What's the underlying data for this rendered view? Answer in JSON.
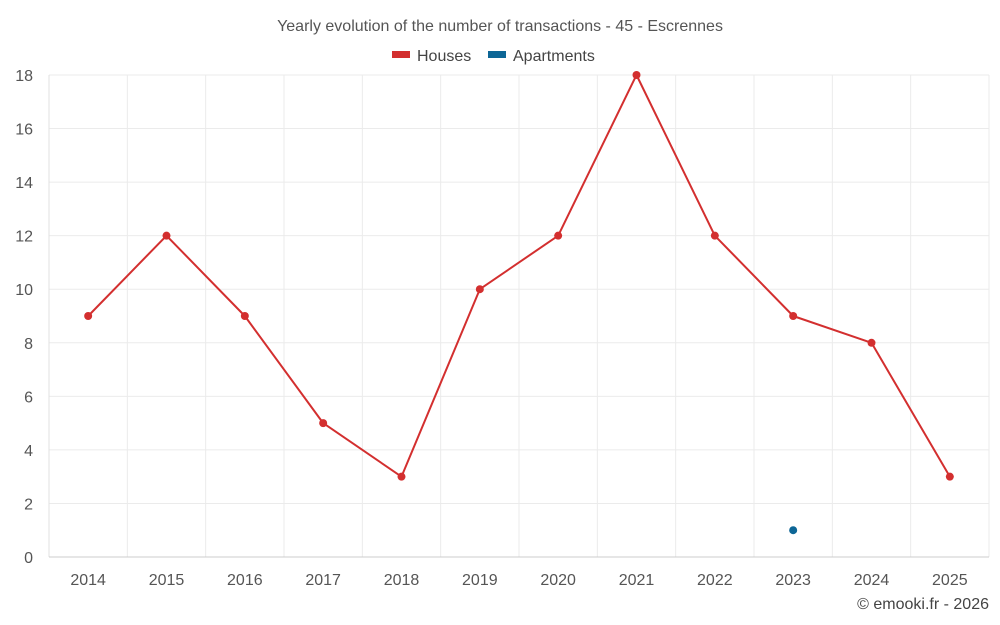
{
  "chart_data": {
    "type": "line",
    "title": "Yearly evolution of the number of transactions - 45 - Escrennes",
    "categories": [
      "2014",
      "2015",
      "2016",
      "2017",
      "2018",
      "2019",
      "2020",
      "2021",
      "2022",
      "2023",
      "2024",
      "2025"
    ],
    "series": [
      {
        "name": "Houses",
        "color": "#d32f2f",
        "values": [
          9,
          12,
          9,
          5,
          3,
          10,
          12,
          18,
          12,
          9,
          8,
          3
        ]
      },
      {
        "name": "Apartments",
        "color": "#0d6696",
        "values": [
          null,
          null,
          null,
          null,
          null,
          null,
          null,
          null,
          null,
          1,
          null,
          null
        ]
      }
    ],
    "ylim": [
      0,
      18
    ],
    "yticks": [
      "0",
      "2",
      "4",
      "6",
      "8",
      "10",
      "12",
      "14",
      "16",
      "18"
    ],
    "xlabel": "",
    "ylabel": "",
    "grid": true,
    "legend_position": "top-center"
  },
  "credit": "© emooki.fr - 2026"
}
